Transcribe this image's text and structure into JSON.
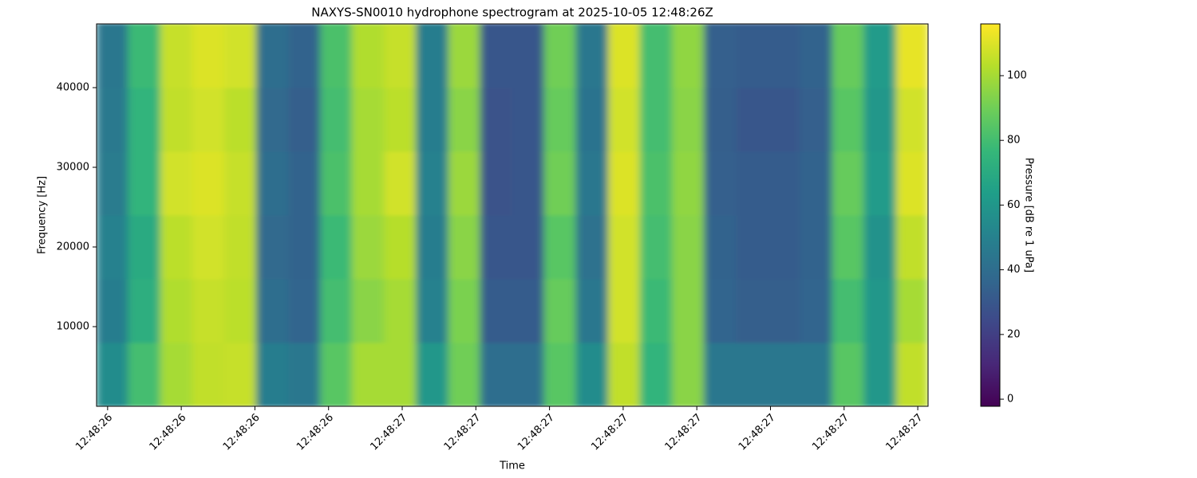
{
  "chart_data": {
    "type": "heatmap",
    "title": "NAXYS-SN0010 hydrophone spectrogram at 2025-10-05 12:48:26Z",
    "x_label": "Time",
    "y_label": "Frequency [Hz]",
    "colorbar_label": "Pressure [dB re 1 uPa]",
    "colormap": "viridis",
    "x_bins": [
      26.585,
      26.628,
      26.672,
      26.715,
      26.759,
      26.802,
      26.846,
      26.889,
      26.932,
      26.976,
      27.019,
      27.063,
      27.106,
      27.15,
      27.193,
      27.236,
      27.28,
      27.323,
      27.367,
      27.41,
      27.454,
      27.497,
      27.54,
      27.584,
      27.627,
      27.671,
      27.714
    ],
    "y_bins": [
      0,
      8000,
      16000,
      24000,
      32000,
      40000,
      48000
    ],
    "z": [
      [
        55,
        80,
        100,
        105,
        106,
        48,
        45,
        85,
        100,
        100,
        60,
        90,
        40,
        40,
        85,
        55,
        105,
        75,
        95,
        45,
        45,
        45,
        45,
        85,
        60,
        105
      ],
      [
        48,
        72,
        102,
        106,
        104,
        40,
        36,
        80,
        95,
        100,
        50,
        92,
        32,
        32,
        88,
        45,
        108,
        78,
        95,
        36,
        33,
        33,
        36,
        80,
        60,
        100
      ],
      [
        50,
        70,
        104,
        108,
        105,
        38,
        35,
        78,
        98,
        103,
        48,
        95,
        30,
        30,
        85,
        42,
        108,
        80,
        95,
        35,
        32,
        32,
        35,
        85,
        58,
        105
      ],
      [
        47,
        75,
        108,
        110,
        106,
        40,
        35,
        82,
        100,
        108,
        50,
        98,
        28,
        30,
        90,
        45,
        110,
        82,
        96,
        34,
        32,
        32,
        35,
        88,
        62,
        110
      ],
      [
        46,
        75,
        105,
        108,
        104,
        38,
        33,
        80,
        100,
        104,
        48,
        95,
        28,
        30,
        88,
        43,
        108,
        80,
        95,
        33,
        30,
        30,
        34,
        85,
        60,
        108
      ],
      [
        45,
        78,
        106,
        110,
        108,
        40,
        35,
        82,
        102,
        106,
        48,
        98,
        30,
        30,
        90,
        45,
        110,
        80,
        96,
        34,
        32,
        32,
        35,
        88,
        62,
        112
      ]
    ],
    "xlim": [
      26.585,
      27.714
    ],
    "xticks": [
      {
        "value": 26.6,
        "label": "12:48:26"
      },
      {
        "value": 26.7,
        "label": "12:48:26"
      },
      {
        "value": 26.8,
        "label": "12:48:26"
      },
      {
        "value": 26.9,
        "label": "12:48:26"
      },
      {
        "value": 27.0,
        "label": "12:48:27"
      },
      {
        "value": 27.1,
        "label": "12:48:27"
      },
      {
        "value": 27.2,
        "label": "12:48:27"
      },
      {
        "value": 27.3,
        "label": "12:48:27"
      },
      {
        "value": 27.4,
        "label": "12:48:27"
      },
      {
        "value": 27.5,
        "label": "12:48:27"
      },
      {
        "value": 27.6,
        "label": "12:48:27"
      },
      {
        "value": 27.7,
        "label": "12:48:27"
      }
    ],
    "ylim": [
      0,
      48000
    ],
    "yticks": [
      10000,
      20000,
      30000,
      40000
    ],
    "clim": [
      -2.2,
      116
    ],
    "cticks": [
      0,
      20,
      40,
      60,
      80,
      100
    ]
  }
}
